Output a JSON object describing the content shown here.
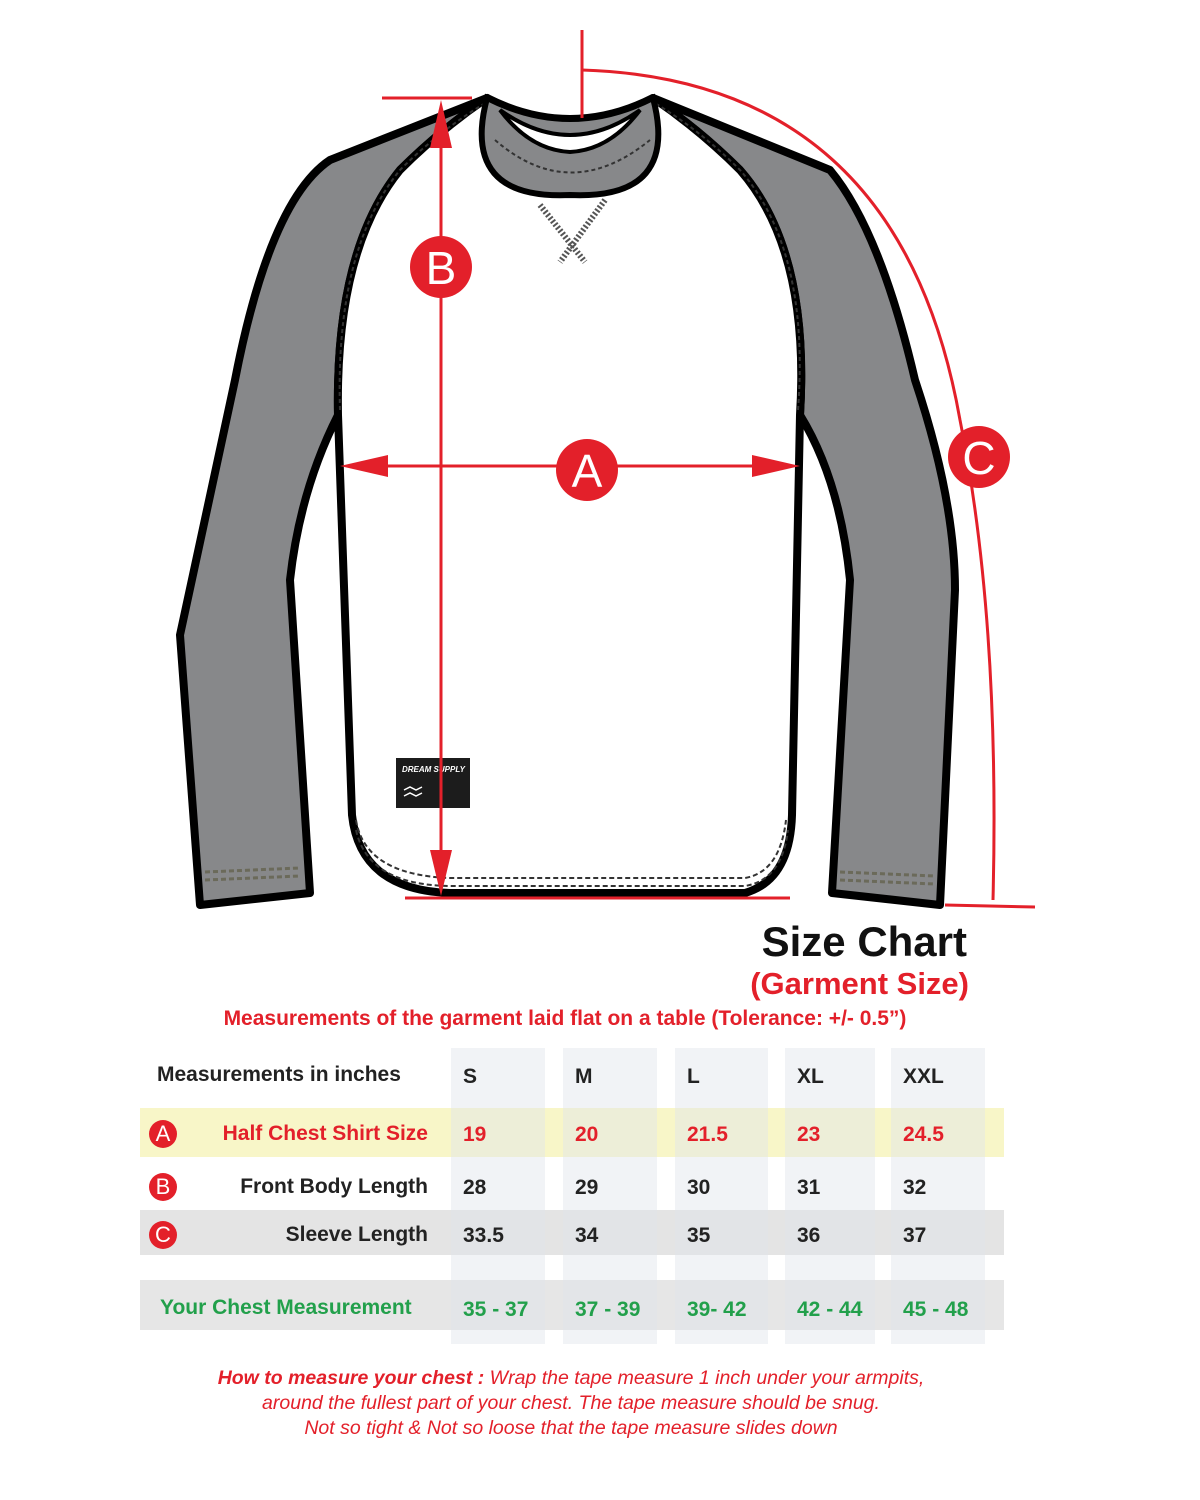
{
  "diagram": {
    "markers": {
      "a": "A",
      "b": "B",
      "c": "C"
    },
    "label_logo": "DREAM SUPPLY",
    "colors": {
      "accent": "#e3202a",
      "sleeve": "#87888a",
      "green": "#22a04b",
      "highlight": "#f8f6c8"
    }
  },
  "header": {
    "title": "Size Chart",
    "subtitle": "(Garment Size)",
    "note": "Measurements of the garment laid flat  on a table  (Tolerance: +/- 0.5”)"
  },
  "table": {
    "header_label": "Measurements in inches",
    "sizes": [
      "S",
      "M",
      "L",
      "XL",
      "XXL"
    ],
    "rows": [
      {
        "marker": "A",
        "label": "Half Chest Shirt Size",
        "values": [
          "19",
          "20",
          "21.5",
          "23",
          "24.5"
        ]
      },
      {
        "marker": "B",
        "label": "Front Body Length",
        "values": [
          "28",
          "29",
          "30",
          "31",
          "32"
        ]
      },
      {
        "marker": "C",
        "label": "Sleeve Length",
        "values": [
          "33.5",
          "34",
          "35",
          "36",
          "37"
        ]
      }
    ],
    "chest_row": {
      "label": "Your Chest Measurement",
      "values": [
        "35 - 37",
        "37 - 39",
        "39- 42",
        "42 - 44",
        "45 - 48"
      ]
    }
  },
  "howto": {
    "heading": "How to measure your chest :",
    "line1": " Wrap the tape measure 1 inch under your armpits,",
    "line2": "around the fullest part of your chest. The tape measure should be snug.",
    "line3": "Not so tight & Not so loose that the tape measure slides down"
  }
}
